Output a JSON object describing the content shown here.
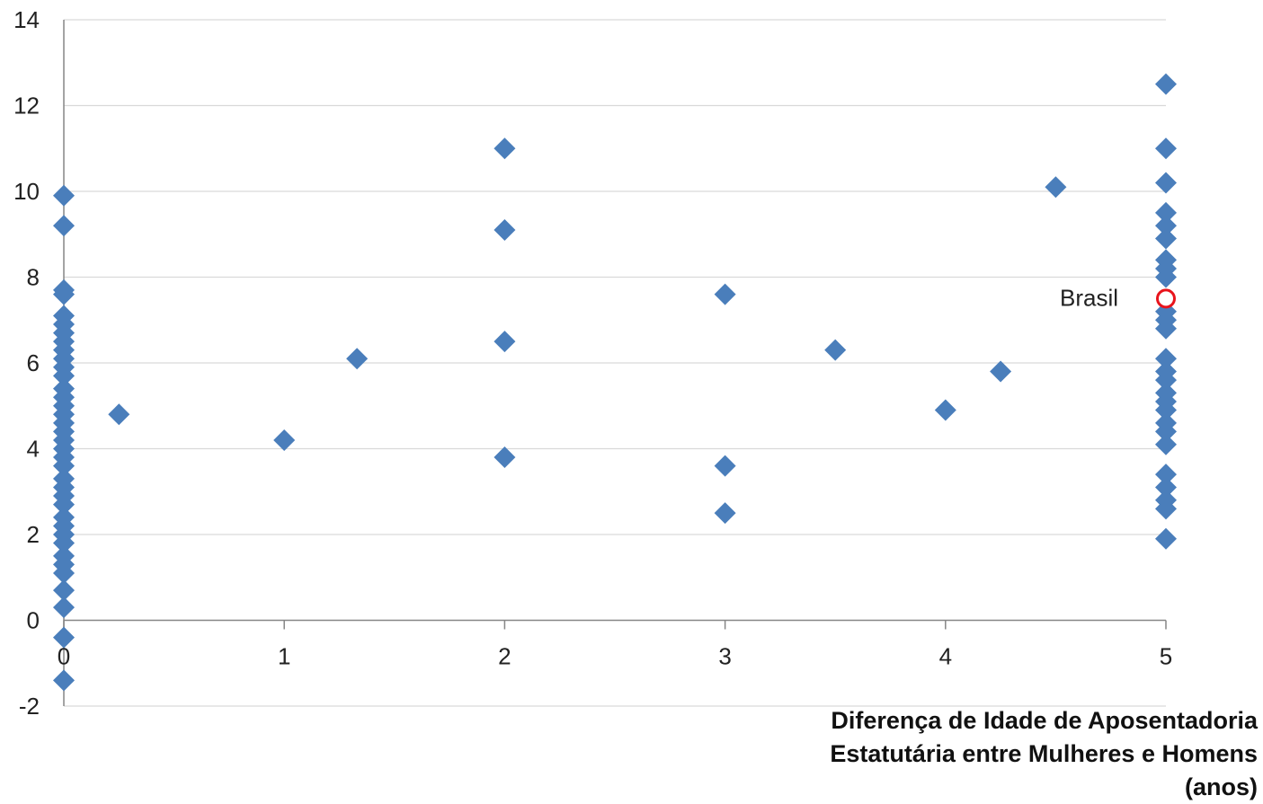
{
  "chart_data": {
    "type": "scatter",
    "xlabel_lines": [
      "Diferença de Idade de Aposentadoria",
      "Estatutária  entre Mulheres e Homens",
      "(anos)"
    ],
    "ylabel": "",
    "xlim": [
      0,
      5
    ],
    "ylim": [
      -2,
      14
    ],
    "x_ticks": [
      "0",
      "1",
      "2",
      "3",
      "4",
      "5"
    ],
    "y_ticks": [
      "-2",
      "0",
      "2",
      "4",
      "6",
      "8",
      "10",
      "12",
      "14"
    ],
    "grid": "horizontal",
    "marker_color": "#4A7EBB",
    "highlight_color": "#E8141C",
    "points": [
      [
        0,
        9.9
      ],
      [
        0,
        9.2
      ],
      [
        0,
        7.7
      ],
      [
        0,
        7.6
      ],
      [
        0,
        7.1
      ],
      [
        0,
        6.9
      ],
      [
        0,
        6.7
      ],
      [
        0,
        6.5
      ],
      [
        0,
        6.3
      ],
      [
        0,
        6.1
      ],
      [
        0,
        5.9
      ],
      [
        0,
        5.7
      ],
      [
        0,
        5.4
      ],
      [
        0,
        5.2
      ],
      [
        0,
        5.0
      ],
      [
        0,
        4.8
      ],
      [
        0,
        4.6
      ],
      [
        0,
        4.4
      ],
      [
        0,
        4.2
      ],
      [
        0,
        4.0
      ],
      [
        0,
        3.8
      ],
      [
        0,
        3.6
      ],
      [
        0,
        3.3
      ],
      [
        0,
        3.1
      ],
      [
        0,
        2.9
      ],
      [
        0,
        2.7
      ],
      [
        0,
        2.4
      ],
      [
        0,
        2.2
      ],
      [
        0,
        2.0
      ],
      [
        0,
        1.8
      ],
      [
        0,
        1.5
      ],
      [
        0,
        1.3
      ],
      [
        0,
        1.1
      ],
      [
        0,
        0.7
      ],
      [
        0,
        0.3
      ],
      [
        0,
        -0.4
      ],
      [
        0,
        -1.4
      ],
      [
        0.25,
        4.8
      ],
      [
        1,
        4.2
      ],
      [
        1.33,
        6.1
      ],
      [
        2,
        11.0
      ],
      [
        2,
        9.1
      ],
      [
        2,
        6.5
      ],
      [
        2,
        3.8
      ],
      [
        3,
        7.6
      ],
      [
        3,
        3.6
      ],
      [
        3,
        2.5
      ],
      [
        3.5,
        6.3
      ],
      [
        4,
        4.9
      ],
      [
        4.25,
        5.8
      ],
      [
        4.5,
        10.1
      ],
      [
        5,
        12.5
      ],
      [
        5,
        11.0
      ],
      [
        5,
        10.2
      ],
      [
        5,
        9.5
      ],
      [
        5,
        9.2
      ],
      [
        5,
        8.9
      ],
      [
        5,
        8.4
      ],
      [
        5,
        8.2
      ],
      [
        5,
        8.0
      ],
      [
        5,
        7.2
      ],
      [
        5,
        7.0
      ],
      [
        5,
        6.8
      ],
      [
        5,
        6.1
      ],
      [
        5,
        5.8
      ],
      [
        5,
        5.6
      ],
      [
        5,
        5.3
      ],
      [
        5,
        5.1
      ],
      [
        5,
        4.9
      ],
      [
        5,
        4.6
      ],
      [
        5,
        4.4
      ],
      [
        5,
        4.1
      ],
      [
        5,
        3.4
      ],
      [
        5,
        3.1
      ],
      [
        5,
        2.8
      ],
      [
        5,
        2.6
      ],
      [
        5,
        1.9
      ]
    ],
    "highlight": {
      "x": 5,
      "y": 7.5,
      "label": "Brasil"
    }
  }
}
